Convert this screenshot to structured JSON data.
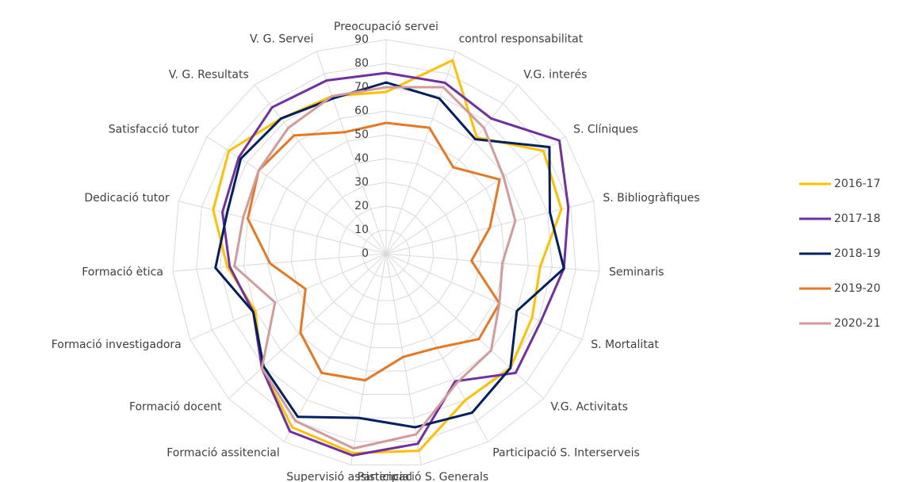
{
  "chart_data": {
    "type": "radar",
    "categories": [
      "Preocupació servei",
      "control responsabilitat",
      "V.G. interés",
      "S. Clíniques",
      "S. Bibliogràfiques",
      "Seminaris",
      "S. Mortalitat",
      "V.G. Activitats",
      "Participació S. Interserveis",
      "Participació S. Generals",
      "Supervisió assistencial",
      "Formació assitencial",
      "Formació docent",
      "Formació investigadora",
      "Formació ètica",
      "Dedicació tutor",
      "Satisfacció tutor",
      "V. G. Resultats",
      "V. G. Servei"
    ],
    "series": [
      {
        "name": "2016-17",
        "color": "#ffc000",
        "values": [
          68,
          86,
          62,
          79,
          76,
          65,
          67,
          71,
          70,
          84,
          85,
          83,
          71,
          60,
          67,
          75,
          79,
          72,
          70
        ]
      },
      {
        "name": "2017-18",
        "color": "#7030a0",
        "values": [
          76,
          76,
          72,
          87,
          79,
          75,
          71,
          74,
          61,
          81,
          86,
          85,
          71,
          61,
          66,
          71,
          74,
          78,
          77
        ]
      },
      {
        "name": "2018-19",
        "color": "#002060",
        "values": [
          72,
          69,
          61,
          82,
          71,
          75,
          60,
          71,
          76,
          74,
          70,
          78,
          70,
          61,
          72,
          69,
          73,
          72,
          69
        ]
      },
      {
        "name": "2019-20",
        "color": "#e87722",
        "values": [
          55,
          56,
          46,
          57,
          45,
          36,
          52,
          53,
          45,
          44,
          54,
          57,
          49,
          37,
          49,
          60,
          64,
          63,
          54
        ]
      },
      {
        "name": "2020-21",
        "color": "#d29b9b",
        "values": [
          70,
          74,
          67,
          59,
          56,
          49,
          52,
          60,
          62,
          77,
          83,
          80,
          71,
          51,
          64,
          62,
          64,
          67,
          70
        ]
      }
    ],
    "ylim": [
      0,
      90
    ],
    "yticks": [
      0,
      10,
      20,
      30,
      40,
      50,
      60,
      70,
      80,
      90
    ],
    "grid": true,
    "legend": "right"
  }
}
